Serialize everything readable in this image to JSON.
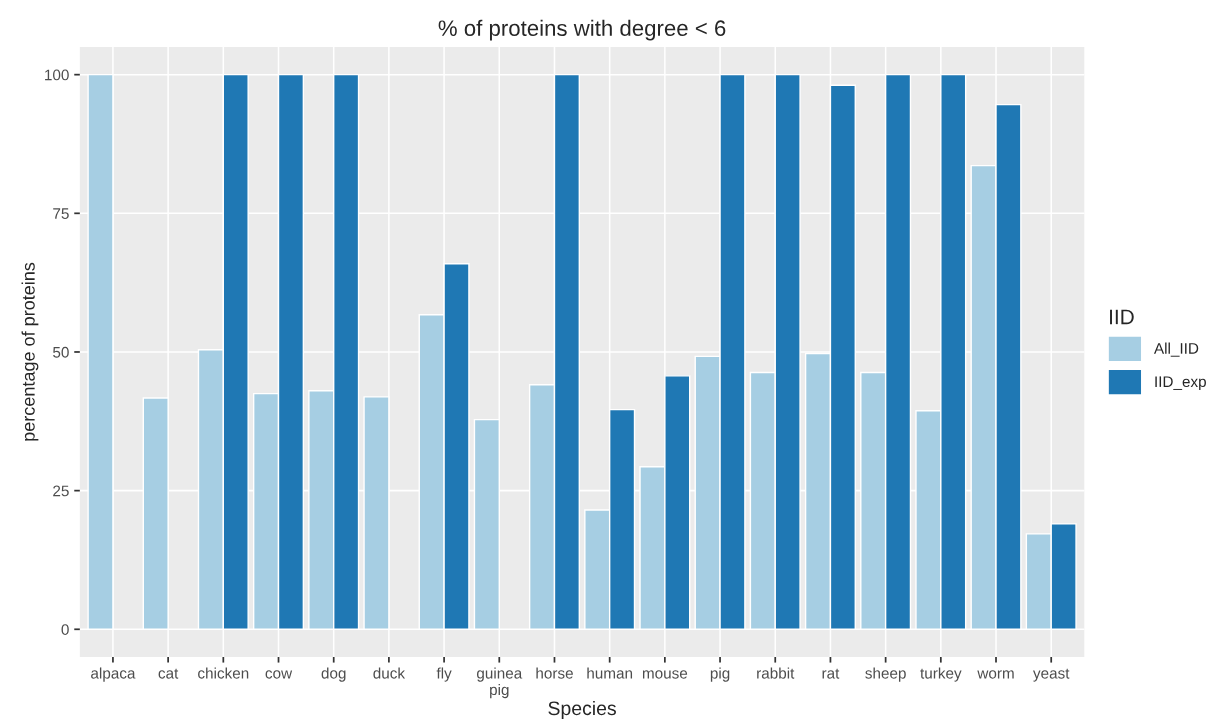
{
  "chart_data": {
    "type": "bar",
    "title": "% of proteins with degree < 6",
    "xlabel": "Species",
    "ylabel": "percentage of proteins",
    "legend_title": "IID",
    "categories": [
      "alpaca",
      "cat",
      "chicken",
      "cow",
      "dog",
      "duck",
      "fly",
      "guinea\npig",
      "horse",
      "human",
      "mouse",
      "pig",
      "rabbit",
      "rat",
      "sheep",
      "turkey",
      "worm",
      "yeast"
    ],
    "series": [
      {
        "name": "All_IID",
        "color": "#a6cee3",
        "values": [
          100,
          41.7,
          50.4,
          42.5,
          43.0,
          41.9,
          56.7,
          37.8,
          44.1,
          21.5,
          29.3,
          49.2,
          46.3,
          49.7,
          46.3,
          39.4,
          83.6,
          17.2
        ]
      },
      {
        "name": "IID_exp",
        "color": "#1f78b4",
        "values": [
          null,
          null,
          100,
          100,
          100,
          null,
          65.9,
          null,
          100,
          39.6,
          45.7,
          100,
          100,
          98.1,
          100,
          100,
          94.6,
          19.0
        ]
      }
    ],
    "ylim": [
      -5,
      105
    ],
    "yticks": [
      0,
      25,
      50,
      75,
      100
    ],
    "grid": true,
    "legend": "right"
  }
}
